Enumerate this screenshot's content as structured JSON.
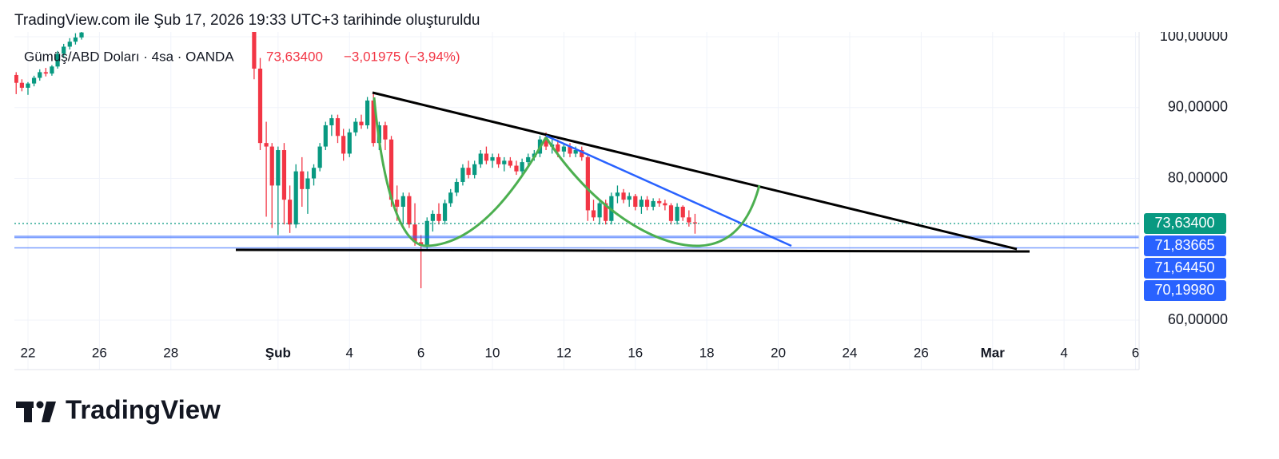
{
  "header": "TradingView.com ile Şub 17, 2026 19:33 UTC+3 tarihinde oluşturuldu",
  "logo": "TradingView",
  "chart_data": {
    "type": "candlestick",
    "title": "Gümüş/ABD Doları · 4sa · OANDA",
    "last_price_label": "73,63400",
    "change_label": "−3,01975 (−3,94%)",
    "up_color": "#089981",
    "down_color": "#f23645",
    "grid": true,
    "x": [
      -0.33,
      -0.17,
      0,
      0.17,
      0.33,
      0.5,
      0.67,
      0.83,
      1,
      1.17,
      1.33,
      1.5,
      6.33,
      6.5,
      6.67,
      6.83,
      7,
      7.17,
      7.33,
      7.5,
      7.67,
      7.83,
      8,
      8.17,
      8.33,
      8.5,
      8.67,
      8.83,
      9,
      9.17,
      9.33,
      9.5,
      9.67,
      9.83,
      10,
      10.17,
      10.33,
      10.5,
      10.67,
      10.83,
      11,
      11.17,
      11.33,
      11.5,
      11.67,
      11.83,
      12,
      12.17,
      12.33,
      12.5,
      12.67,
      12.83,
      13,
      13.17,
      13.33,
      13.5,
      13.67,
      13.83,
      14,
      14.17,
      14.33,
      14.5,
      14.67,
      14.83,
      15,
      15.17,
      15.33,
      15.5,
      15.67,
      15.83,
      16,
      16.17,
      16.33,
      16.5,
      16.67,
      16.83,
      17,
      17.17,
      17.33,
      17.5,
      17.67,
      17.83,
      18,
      18.17,
      18.33,
      18.5,
      18.67
    ],
    "open": [
      94.6,
      93.5,
      92.8,
      93.4,
      94.2,
      95.0,
      94.8,
      95.8,
      97.6,
      98.6,
      99.3,
      99.9,
      103,
      95.5,
      85,
      84.5,
      79,
      84,
      77,
      73.5,
      81,
      78.5,
      80,
      81.5,
      84.5,
      87.5,
      88.5,
      86,
      83.5,
      86.5,
      88,
      87.5,
      91,
      85,
      87.5,
      85.5,
      77,
      76,
      77.5,
      73.5,
      71,
      70.5,
      74,
      75,
      74,
      76.5,
      78,
      79.5,
      81.5,
      80.5,
      82,
      83.5,
      82.5,
      83,
      82,
      82.5,
      81.8,
      81,
      82.3,
      83,
      83.5,
      85.5,
      84.5,
      84.8,
      83.8,
      84.5,
      83.5,
      84,
      83,
      75.5,
      74.5,
      76.5,
      74,
      77.5,
      78,
      77,
      77.5,
      76,
      77,
      76,
      76.8,
      76.5,
      76.2,
      74,
      76,
      74.5,
      73.8
    ],
    "high": [
      95.0,
      94.0,
      93.6,
      94.5,
      95.4,
      95.6,
      96.0,
      98.0,
      99.0,
      99.8,
      100.5,
      101,
      104,
      97,
      88,
      85,
      84.5,
      85,
      79,
      82,
      83,
      81,
      82,
      85,
      88,
      89,
      89,
      87,
      87,
      88.5,
      89,
      91.5,
      92,
      88,
      88,
      86,
      79,
      78,
      78,
      76.5,
      72,
      74.5,
      75.5,
      76.5,
      77,
      78.5,
      80,
      82,
      82.5,
      82.5,
      84,
      84.5,
      83.5,
      83.5,
      83,
      83,
      82.5,
      82.8,
      83.5,
      84,
      86,
      86.5,
      85.5,
      85.5,
      85,
      85,
      84.5,
      84.5,
      83.5,
      77,
      77,
      77,
      78,
      79,
      78.5,
      78,
      77.8,
      77.5,
      77.5,
      77.2,
      77.2,
      77,
      76.5,
      76.5,
      76.2,
      75.5,
      75
    ],
    "low": [
      91.9,
      92.3,
      91.8,
      93.0,
      93.8,
      94.4,
      94.5,
      95.5,
      97.0,
      98.2,
      98.9,
      99.6,
      94,
      84,
      74.6,
      73,
      72,
      73.5,
      72.3,
      73,
      76,
      75,
      79,
      81,
      84,
      86,
      85,
      82.5,
      83,
      86,
      87,
      87,
      84.5,
      84,
      84,
      76,
      74,
      73.5,
      73,
      70.5,
      64.5,
      70,
      72.5,
      73.5,
      73.5,
      76,
      77.5,
      79,
      80,
      80,
      81.5,
      82,
      81.5,
      81.5,
      81,
      81.5,
      80.5,
      80.5,
      81.5,
      82.5,
      83,
      84,
      83.5,
      83,
      83,
      83,
      83,
      82.5,
      74,
      74,
      73.5,
      73.5,
      73.5,
      76.5,
      76.5,
      76,
      75.5,
      75,
      75.5,
      75.5,
      76,
      75.5,
      73.5,
      73.5,
      74,
      73.2,
      72.2
    ],
    "close": [
      93.5,
      92.8,
      93.4,
      94.2,
      95.0,
      94.8,
      95.8,
      97.6,
      98.6,
      99.3,
      99.9,
      100.6,
      95.5,
      85,
      84.5,
      79,
      84,
      77,
      73.5,
      81,
      78.5,
      80,
      81.5,
      84.5,
      87.5,
      88.5,
      86,
      83.5,
      86.5,
      88,
      87.5,
      91,
      85,
      87.5,
      85.5,
      77,
      76,
      77.5,
      73.5,
      71,
      70.5,
      74,
      75,
      74,
      76.5,
      78,
      79.5,
      81.5,
      80.5,
      82,
      83.5,
      82.5,
      83,
      82,
      82.5,
      81.8,
      81,
      82.3,
      83,
      83.5,
      85.5,
      84.5,
      84.8,
      83.8,
      84.5,
      83.5,
      84,
      83,
      75.5,
      74.5,
      76.5,
      74,
      77.5,
      78,
      77,
      77.5,
      76,
      77,
      76,
      76.8,
      76.5,
      76.2,
      74,
      76,
      74.5,
      73.8,
      73.634
    ],
    "xlim": [
      -0.38,
      31.1
    ],
    "xticks": [
      {
        "value": 0,
        "label": "22"
      },
      {
        "value": 2,
        "label": "26"
      },
      {
        "value": 4,
        "label": "28"
      },
      {
        "value": 7,
        "label": "Şub"
      },
      {
        "value": 9,
        "label": "4"
      },
      {
        "value": 11,
        "label": "6"
      },
      {
        "value": 13,
        "label": "10"
      },
      {
        "value": 15,
        "label": "12"
      },
      {
        "value": 17,
        "label": "16"
      },
      {
        "value": 19,
        "label": "18"
      },
      {
        "value": 21,
        "label": "20"
      },
      {
        "value": 23,
        "label": "24"
      },
      {
        "value": 25,
        "label": "26"
      },
      {
        "value": 27,
        "label": "Mar"
      },
      {
        "value": 29,
        "label": "4"
      },
      {
        "value": 31,
        "label": "6"
      }
    ],
    "ylim": [
      57.86,
      100.68
    ],
    "yticks": [
      {
        "value": 60,
        "label": "60,00000"
      },
      {
        "value": 80,
        "label": "80,00000"
      },
      {
        "value": 90,
        "label": "90,00000"
      },
      {
        "value": 100,
        "label": "100,00000"
      }
    ],
    "price_lines": [
      {
        "value": 73.634,
        "label": "73,63400",
        "color": "#089981",
        "style": "dotted"
      },
      {
        "value": 71.83665,
        "label": "71,83665",
        "color": "#2962ff",
        "style": "solid"
      },
      {
        "value": 71.6445,
        "label": "71,64450",
        "color": "#2962ff",
        "style": "solid"
      },
      {
        "value": 70.1998,
        "label": "70,19980",
        "color": "#2962ff",
        "style": "solid"
      }
    ]
  }
}
